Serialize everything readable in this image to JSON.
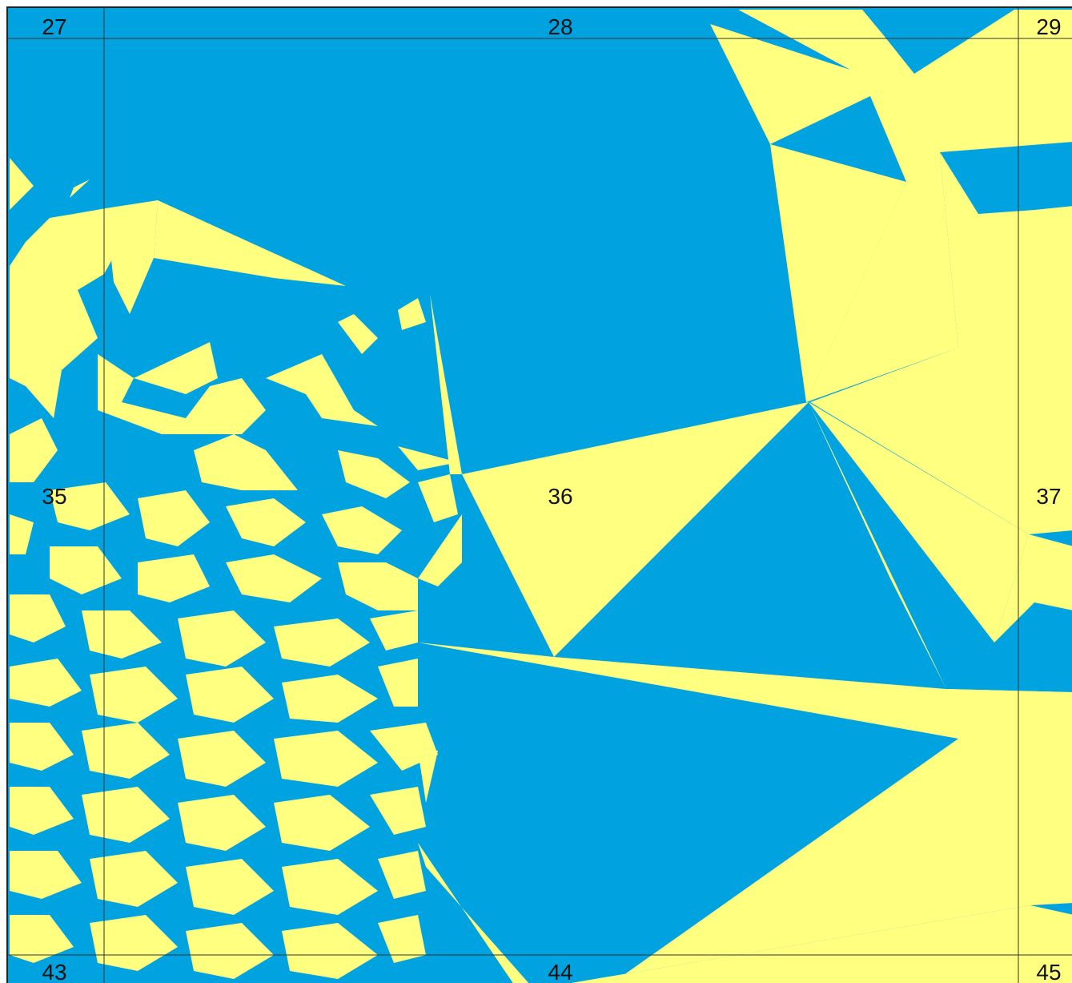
{
  "map": {
    "colors": {
      "water": "#00A3E0",
      "land": "#FFFF80",
      "grid": "#333333",
      "label": "#111111"
    },
    "sheet_labels": {
      "l27": "27",
      "l28": "28",
      "l29": "29",
      "l35": "35",
      "l36": "36",
      "l37": "37",
      "l43": "43",
      "l44": "44",
      "l45": "45"
    }
  }
}
